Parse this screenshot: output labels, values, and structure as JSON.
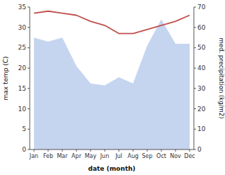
{
  "chart_data": {
    "type": "line",
    "xlabel": "date (month)",
    "ylabel": "max temp (C)",
    "y2label": "med. precipitation (kg/m2)",
    "categories": [
      "Jan",
      "Feb",
      "Mar",
      "Apr",
      "May",
      "Jun",
      "Jul",
      "Aug",
      "Sep",
      "Oct",
      "Nov",
      "Dec"
    ],
    "series": [
      {
        "type": "area",
        "axis": "y2",
        "color": "#c5d5f0",
        "values": [
          55.0,
          53.0,
          55.0,
          41.0,
          32.5,
          31.5,
          35.5,
          32.5,
          51.0,
          64.0,
          52.0,
          52.0
        ]
      },
      {
        "type": "line",
        "color": "#c0504d",
        "values": [
          33.5,
          34.0,
          33.5,
          33.0,
          31.5,
          30.5,
          28.5,
          28.5,
          29.5,
          30.5,
          31.5,
          33.0
        ]
      }
    ],
    "ylim": [
      0,
      35
    ],
    "yticks": [
      0,
      5,
      10,
      15,
      20,
      25,
      30,
      35
    ],
    "y2lim": [
      0,
      70
    ],
    "y2ticks": [
      0,
      10,
      20,
      30,
      40,
      50,
      60,
      70
    ]
  }
}
